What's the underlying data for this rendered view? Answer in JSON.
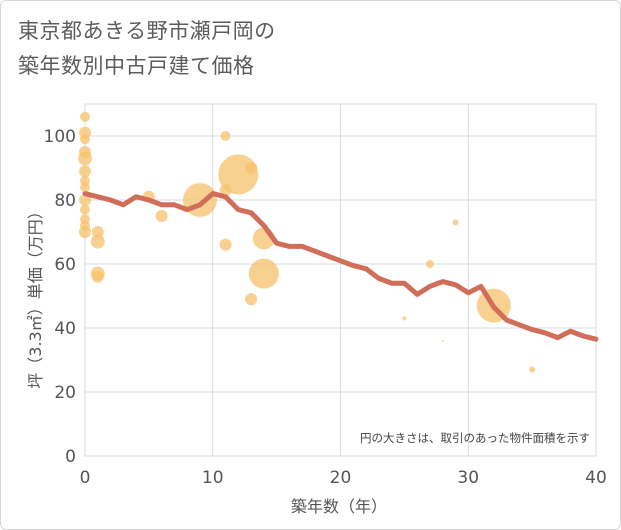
{
  "title_line1": "東京都あきる野市瀬戸岡の",
  "title_line2": "築年数別中古戸建て価格",
  "chart_data": {
    "type": "scatter",
    "title": "東京都あきる野市瀬戸岡の築年数別中古戸建て価格",
    "xlabel": "築年数（年）",
    "ylabel": "坪（3.3㎡）単価（万円）",
    "xlim": [
      0,
      40
    ],
    "ylim": [
      0,
      110
    ],
    "xticks": [
      0,
      10,
      20,
      30,
      40
    ],
    "yticks": [
      0,
      20,
      40,
      60,
      80,
      100
    ],
    "grid": true,
    "annotation": "円の大きさは、取引のあった物件面積を示す",
    "colors": {
      "bubble": "#f5c26b",
      "trend": "#d06e5a",
      "grid": "#d4dde6"
    },
    "bubbles": [
      {
        "x": 0,
        "y": 106,
        "size": 5
      },
      {
        "x": 0,
        "y": 101,
        "size": 6
      },
      {
        "x": 0,
        "y": 99,
        "size": 5
      },
      {
        "x": 0,
        "y": 95,
        "size": 6
      },
      {
        "x": 0,
        "y": 93,
        "size": 7
      },
      {
        "x": 0,
        "y": 89,
        "size": 6
      },
      {
        "x": 0,
        "y": 86,
        "size": 5
      },
      {
        "x": 0,
        "y": 84,
        "size": 5
      },
      {
        "x": 0,
        "y": 80,
        "size": 6
      },
      {
        "x": 0,
        "y": 77,
        "size": 5
      },
      {
        "x": 0,
        "y": 74,
        "size": 5
      },
      {
        "x": 0,
        "y": 72,
        "size": 5
      },
      {
        "x": 0,
        "y": 70,
        "size": 6
      },
      {
        "x": 1,
        "y": 70,
        "size": 6
      },
      {
        "x": 1,
        "y": 67,
        "size": 7
      },
      {
        "x": 1,
        "y": 57,
        "size": 7
      },
      {
        "x": 1,
        "y": 56,
        "size": 6
      },
      {
        "x": 5,
        "y": 81,
        "size": 6
      },
      {
        "x": 6,
        "y": 75,
        "size": 6
      },
      {
        "x": 9,
        "y": 80,
        "size": 17
      },
      {
        "x": 11,
        "y": 100,
        "size": 5
      },
      {
        "x": 11,
        "y": 83,
        "size": 6
      },
      {
        "x": 11,
        "y": 66,
        "size": 6
      },
      {
        "x": 12,
        "y": 88,
        "size": 20
      },
      {
        "x": 13,
        "y": 90,
        "size": 6
      },
      {
        "x": 13,
        "y": 49,
        "size": 6
      },
      {
        "x": 14,
        "y": 68,
        "size": 11
      },
      {
        "x": 14,
        "y": 57,
        "size": 15
      },
      {
        "x": 25,
        "y": 43,
        "size": 2
      },
      {
        "x": 27,
        "y": 60,
        "size": 4
      },
      {
        "x": 28,
        "y": 36,
        "size": 1
      },
      {
        "x": 29,
        "y": 73,
        "size": 3
      },
      {
        "x": 32,
        "y": 47,
        "size": 17
      },
      {
        "x": 35,
        "y": 27,
        "size": 3
      }
    ],
    "trend": {
      "x": [
        0,
        1,
        2,
        3,
        4,
        5,
        6,
        7,
        8,
        9,
        10,
        11,
        12,
        13,
        14,
        15,
        16,
        17,
        18,
        19,
        20,
        21,
        22,
        23,
        24,
        25,
        26,
        27,
        28,
        29,
        30,
        31,
        32,
        33,
        34,
        35,
        36,
        37,
        38,
        39,
        40
      ],
      "y": [
        82,
        81,
        80,
        78.5,
        81,
        80,
        78.5,
        78.5,
        77,
        78.5,
        82,
        81,
        77,
        76,
        72,
        66.5,
        65.5,
        65.5,
        64,
        62.5,
        61,
        59.5,
        58.5,
        55.5,
        54,
        54,
        50.5,
        53,
        54.5,
        53.5,
        51,
        53,
        46.5,
        42.5,
        41,
        39.5,
        38.5,
        37,
        39,
        37.5,
        36.5
      ]
    }
  }
}
